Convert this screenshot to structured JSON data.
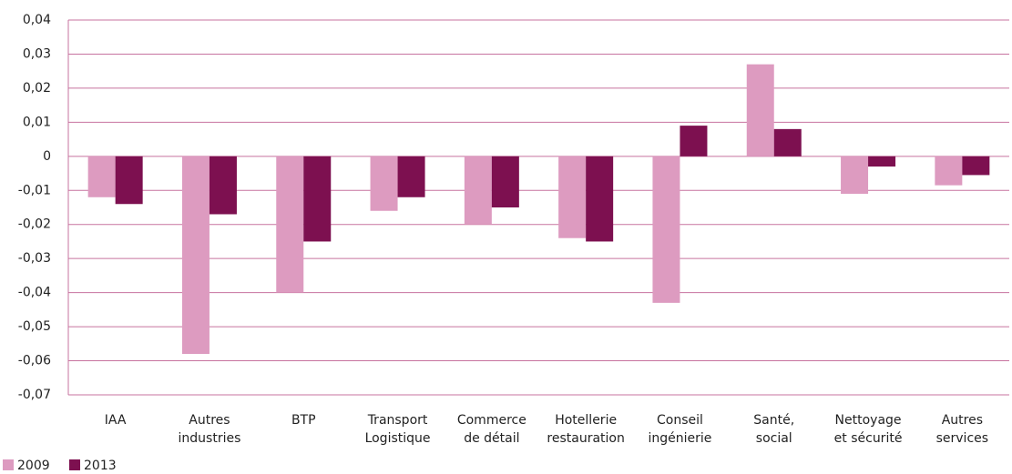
{
  "chart_data": {
    "type": "bar",
    "categories": [
      [
        "IAA"
      ],
      [
        "Autres",
        "industries"
      ],
      [
        "BTP"
      ],
      [
        "Transport",
        "Logistique"
      ],
      [
        "Commerce",
        "de détail"
      ],
      [
        "Hotellerie",
        "restauration"
      ],
      [
        "Conseil",
        "ingénierie"
      ],
      [
        "Santé,",
        "social"
      ],
      [
        "Nettoyage",
        "et sécurité"
      ],
      [
        "Autres",
        "services"
      ]
    ],
    "series": [
      {
        "name": "2009",
        "color": "#dd9bc0",
        "values": [
          -0.012,
          -0.058,
          -0.04,
          -0.016,
          -0.02,
          -0.024,
          -0.043,
          0.027,
          -0.011,
          -0.0085
        ]
      },
      {
        "name": "2013",
        "color": "#7d1050",
        "values": [
          -0.014,
          -0.017,
          -0.025,
          -0.012,
          -0.015,
          -0.025,
          0.009,
          0.008,
          -0.003,
          -0.0055
        ]
      }
    ],
    "ylim": [
      -0.07,
      0.04
    ],
    "yticks": [
      {
        "value": -0.07,
        "label": "-0,07"
      },
      {
        "value": -0.06,
        "label": "-0,06"
      },
      {
        "value": -0.05,
        "label": "-0,05"
      },
      {
        "value": -0.04,
        "label": "-0,04"
      },
      {
        "value": -0.03,
        "label": "-0,03"
      },
      {
        "value": -0.02,
        "label": "-0,02"
      },
      {
        "value": -0.01,
        "label": "-0,01"
      },
      0,
      {
        "value": 0.01,
        "label": "0,01"
      },
      {
        "value": 0.02,
        "label": "0,02"
      },
      {
        "value": 0.03,
        "label": "0,03"
      },
      {
        "value": 0.04,
        "label": "0,04"
      }
    ],
    "grid": true,
    "legend": "bottom-left"
  }
}
